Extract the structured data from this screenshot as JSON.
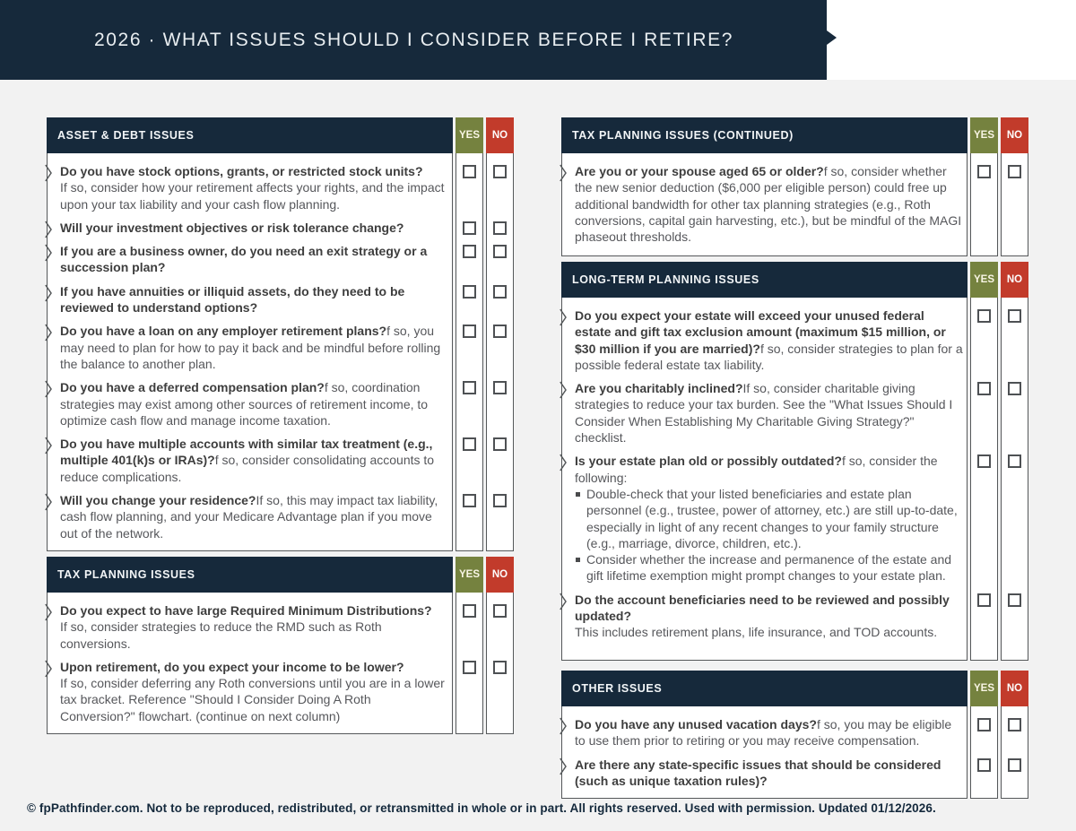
{
  "page": {
    "title": "2026 · WHAT ISSUES SHOULD I CONSIDER BEFORE I RETIRE?",
    "footer": "© fpPathfinder.com. Not to be reproduced, redistributed, or retransmitted in whole or in part. All rights reserved. Used with permission. Updated 01/12/2026."
  },
  "labels": {
    "yes": "YES",
    "no": "NO"
  },
  "colors": {
    "navy": "#16293B",
    "green": "#75823F",
    "red": "#C23B2B",
    "border": "#55585A",
    "page_bg": "#F2F2F2",
    "bold_text": "#3E3E3E",
    "body_text": "#56575B",
    "title_text": "#E8EDF0"
  },
  "columns": [
    {
      "sections": [
        {
          "title": "ASSET & DEBT ISSUES",
          "rows": [
            {
              "q": "Do you have stock options, grants, or restricted stock units?",
              "a_block": "If so, consider how your retirement affects your rights, and the impact upon your tax liability and your cash flow planning."
            },
            {
              "q": "Will your investment objectives or risk tolerance change?"
            },
            {
              "q": "If you are a business owner, do you need an exit strategy or a succession plan?"
            },
            {
              "q": "If you have annuities or illiquid assets, do they need to be reviewed to understand options?"
            },
            {
              "q": "Do you have a loan on any employer retirement plans?",
              "a_inline": "f so, you may need to plan for how to pay it back and be mindful before rolling the balance to another plan."
            },
            {
              "q": "Do you have a deferred compensation plan?",
              "a_inline": "f so, coordination strategies may exist among other sources of retirement income, to optimize cash flow and manage income taxation."
            },
            {
              "q": "Do you have multiple accounts with similar tax treatment (e.g., multiple 401(k)s or IRAs)?",
              "a_inline": "f so, consider consolidating accounts to reduce complications."
            },
            {
              "q": "Will you change your residence?",
              "a_inline": "If so, this may impact tax liability, cash flow planning, and your Medicare Advantage plan if you move out of the network."
            }
          ]
        },
        {
          "title": "TAX PLANNING ISSUES",
          "rows": [
            {
              "q": "Do you expect to have large Required Minimum Distributions?",
              "a_block": "If so, consider strategies to reduce the RMD such as Roth conversions."
            },
            {
              "q": "Upon retirement, do you expect your income to be lower?",
              "a_block": "If so, consider deferring any Roth conversions until you are in a lower tax bracket. Reference \"Should I Consider Doing A Roth Conversion?\" flowchart. (continue on next column)"
            }
          ]
        }
      ]
    },
    {
      "sections": [
        {
          "title": "TAX PLANNING ISSUES (CONTINUED)",
          "rows": [
            {
              "q": "Are you or your spouse aged 65 or older?",
              "a_inline": "f so, consider whether the new senior deduction ($6,000 per eligible person) could free up additional bandwidth for other tax planning strategies (e.g., Roth conversions, capital gain harvesting, etc.), but be mindful of the MAGI phaseout thresholds."
            }
          ]
        },
        {
          "title": "LONG-TERM PLANNING ISSUES",
          "rows": [
            {
              "q": "Do you expect your estate will exceed your unused federal estate and gift tax exclusion amount (maximum $15 million, or $30 million if you are married)?",
              "a_inline": "f so, consider strategies to plan for a possible federal estate tax liability."
            },
            {
              "q": "Are you charitably inclined?",
              "a_inline": "If so, consider charitable giving strategies to reduce your tax burden. See the \"What Issues Should I Consider When Establishing My Charitable Giving Strategy?\" checklist."
            },
            {
              "q": "Is your estate plan old or possibly outdated?",
              "a_inline": "f so, consider the following:",
              "bullets": [
                "Double-check that your listed beneficiaries and estate plan personnel (e.g., trustee, power of attorney, etc.) are still up-to-date, especially in light of any recent changes to your family structure (e.g., marriage, divorce, children, etc.).",
                "Consider whether the increase and permanence of the estate and gift lifetime exemption might prompt changes to your estate plan."
              ]
            },
            {
              "q": "Do the account beneficiaries need to be reviewed and possibly updated?",
              "a_block": "This includes retirement plans, life insurance, and TOD accounts."
            }
          ]
        },
        {
          "title": "OTHER ISSUES",
          "rows": [
            {
              "q": "Do you have any unused vacation days?",
              "a_inline": "f so, you may be eligible to use them prior to retiring or you may receive compensation."
            },
            {
              "q": "Are there any state-specific issues that should be considered (such as unique taxation rules)?"
            }
          ]
        }
      ]
    }
  ]
}
